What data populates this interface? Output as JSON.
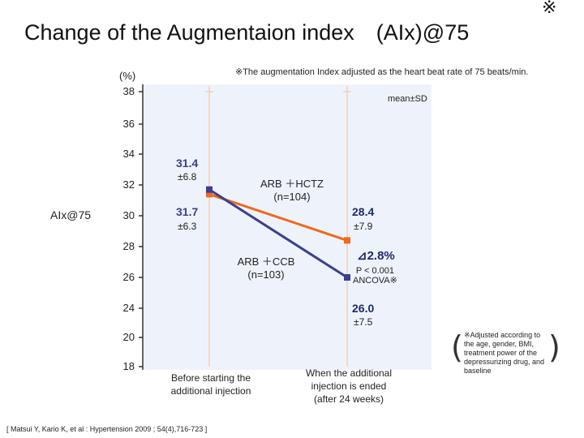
{
  "title": "Change of the Augmentaion index　(AIx)@75",
  "title_mark": "※",
  "note": "※The augmentation Index adjusted as the heart beat rate of 75 beats/min.",
  "ylabel_unit": "(%)",
  "ylabel": "AIx@75",
  "legend_note": "mean±SD",
  "chart_data": {
    "type": "line",
    "x": [
      "Before starting the additional injection",
      "When the additional injection is ended (after 24 weeks)"
    ],
    "ylim": [
      18,
      38
    ],
    "yticks": [
      "38",
      "36",
      "34",
      "32",
      "30",
      "28",
      "26",
      "24",
      "20",
      "18"
    ],
    "grid": false,
    "series": [
      {
        "name": "ARB + HCTZ (n=104)",
        "color": "#ee6a1e",
        "values": [
          31.4,
          28.4
        ],
        "sd": [
          "±6.8",
          "±7.9"
        ],
        "labels": [
          "31.4",
          "28.4"
        ],
        "name_lines": [
          "ARB ＋HCTZ",
          "(n=104)"
        ]
      },
      {
        "name": "ARB + CCB (n=103)",
        "color": "#3b3f8f",
        "values": [
          31.7,
          26.0
        ],
        "sd": [
          "±6.3",
          "±7.5"
        ],
        "labels": [
          "31.7",
          "26.0"
        ],
        "name_lines": [
          "ARB ＋CCB",
          "(n=103)"
        ]
      }
    ],
    "annotations": {
      "difference": "⊿2.8%",
      "p_value": "P < 0.001",
      "test": "ANCOVA※"
    }
  },
  "xlabels": {
    "before": [
      "Before starting the",
      "additional injection"
    ],
    "after": [
      "When the additional",
      "injection is ended",
      "(after 24 weeks)"
    ]
  },
  "footnote": "※Adjusted according to the age, gender, BMI, treatment power of the depressurizing drug, and baseline",
  "citation": "[ Matsui Y, Kario K, et al : Hypertension 2009 ; 54(4),716-723 ]",
  "colors": {
    "panel": "#eef3fb",
    "axis": "#333333",
    "hctz": "#ee6a1e",
    "ccb": "#3b3f8f",
    "errorbar": "#f3cfb8"
  }
}
